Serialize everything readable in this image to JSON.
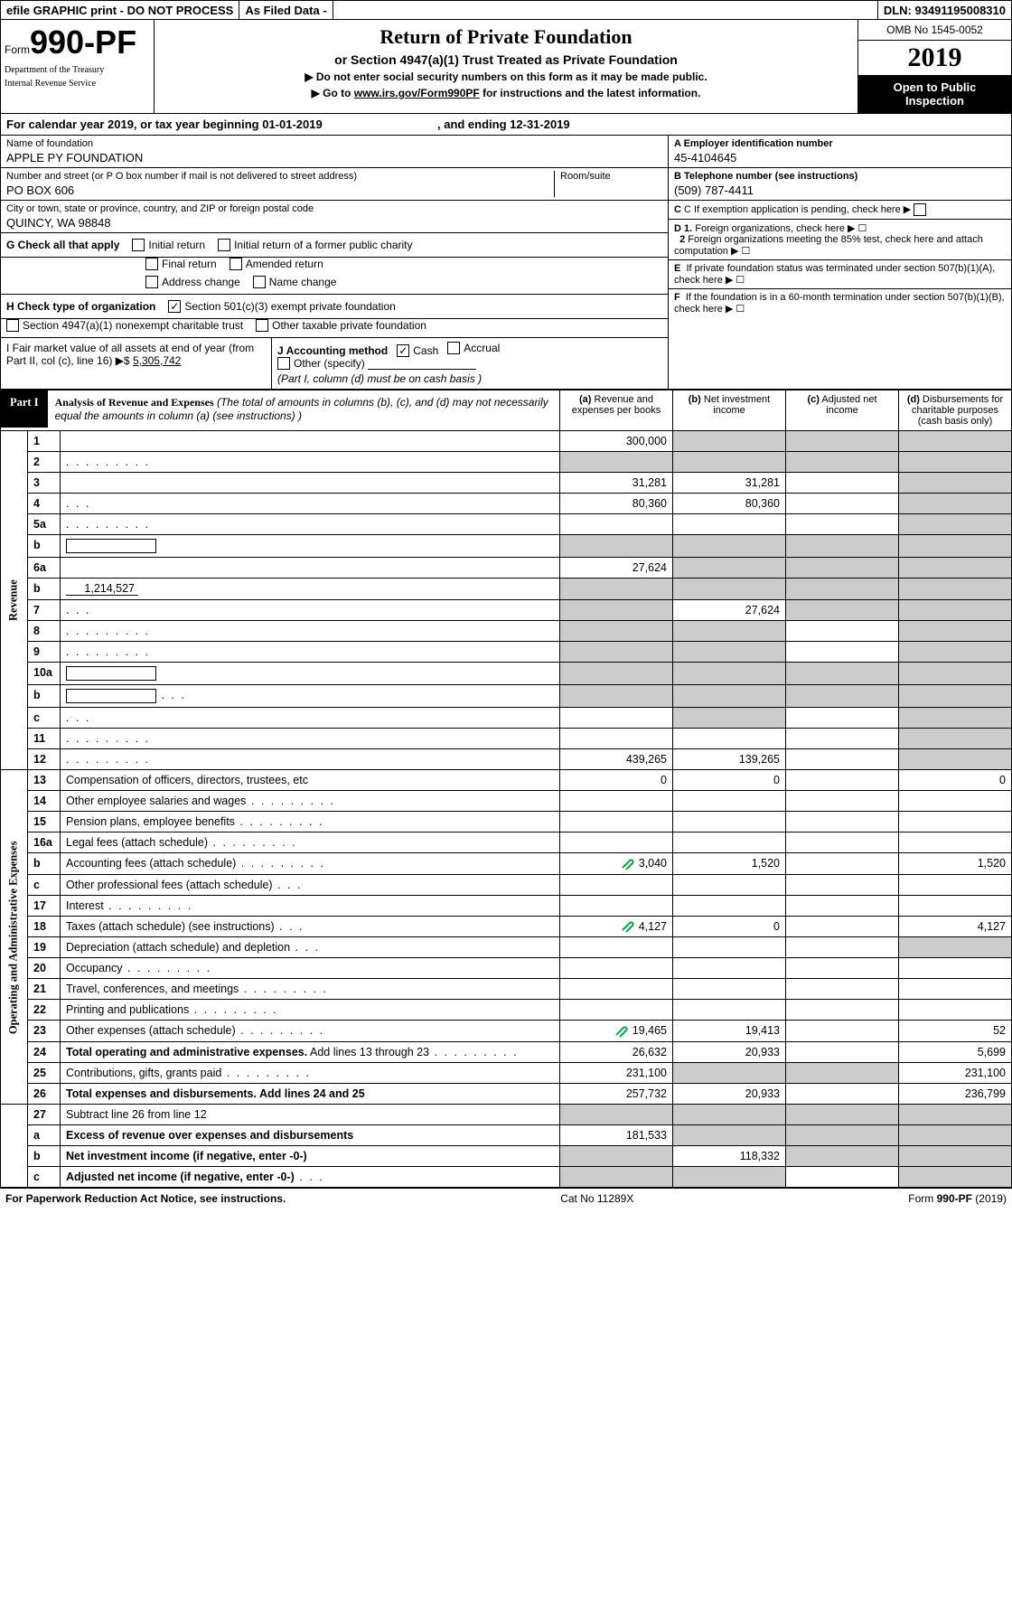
{
  "topbar": {
    "efile": "efile GRAPHIC print - DO NOT PROCESS",
    "asfiled": "As Filed Data -",
    "dln_lbl": "DLN:",
    "dln": "93491195008310"
  },
  "header": {
    "form_prefix": "Form",
    "form_num": "990-PF",
    "dept1": "Department of the Treasury",
    "dept2": "Internal Revenue Service",
    "title": "Return of Private Foundation",
    "subtitle": "or Section 4947(a)(1) Trust Treated as Private Foundation",
    "instr1": "▶ Do not enter social security numbers on this form as it may be made public.",
    "instr2_a": "▶ Go to ",
    "instr2_link": "www.irs.gov/Form990PF",
    "instr2_b": " for instructions and the latest information.",
    "omb": "OMB No 1545-0052",
    "year": "2019",
    "open": "Open to Public Inspection"
  },
  "caly": {
    "a": "For calendar year 2019, or tax year beginning 01-01-2019",
    "b": ", and ending 12-31-2019"
  },
  "info": {
    "name_lbl": "Name of foundation",
    "name": "APPLE PY FOUNDATION",
    "addr_lbl": "Number and street (or P O  box number if mail is not delivered to street address)",
    "addr": "PO BOX 606",
    "room_lbl": "Room/suite",
    "city_lbl": "City or town, state or province, country, and ZIP or foreign postal code",
    "city": "QUINCY, WA  98848",
    "a_lbl": "A Employer identification number",
    "a_val": "45-4104645",
    "b_lbl": "B Telephone number (see instructions)",
    "b_val": "(509) 787-4411",
    "c_lbl": "C If exemption application is pending, check here",
    "d1_lbl": "D 1. Foreign organizations, check here",
    "d2_lbl": "2 Foreign organizations meeting the 85% test, check here and attach computation",
    "e_lbl": "E  If private foundation status was terminated under section 507(b)(1)(A), check here",
    "f_lbl": "F  If the foundation is in a 60-month termination under section 507(b)(1)(B), check here"
  },
  "checks": {
    "g_lbl": "G Check all that apply",
    "g_opts": [
      "Initial return",
      "Initial return of a former public charity",
      "Final return",
      "Amended return",
      "Address change",
      "Name change"
    ],
    "h_lbl": "H Check type of organization",
    "h_opts": [
      "Section 501(c)(3) exempt private foundation",
      "Section 4947(a)(1) nonexempt charitable trust",
      "Other taxable private foundation"
    ],
    "h_checked_idx": 0,
    "i_lbl": "I Fair market value of all assets at end of year (from Part II, col  (c), line 16) ▶$ ",
    "i_val": "5,305,742",
    "j_lbl": "J Accounting method",
    "j_opts": [
      "Cash",
      "Accrual",
      "Other (specify)"
    ],
    "j_checked_idx": 0,
    "j_note": "(Part I, column (d) must be on cash basis )"
  },
  "part1": {
    "lbl": "Part I",
    "title": "Analysis of Revenue and Expenses",
    "note": " (The total of amounts in columns (b), (c), and (d) may not necessarily equal the amounts in column (a) (see instructions) )",
    "col_a": "(a) Revenue and expenses per books",
    "col_b": "(b) Net investment income",
    "col_c": "(c) Adjusted net income",
    "col_d": "(d) Disbursements for charitable purposes (cash basis only)"
  },
  "revenue_lbl": "Revenue",
  "opex_lbl": "Operating and Administrative Expenses",
  "rows": [
    {
      "n": "1",
      "d": "",
      "a": "300,000",
      "b": "",
      "c": "",
      "shade_b": true,
      "shade_c": true,
      "shade_d": true
    },
    {
      "n": "2",
      "d": "",
      "a": "",
      "b": "",
      "c": "",
      "dots": true,
      "shade_all": true
    },
    {
      "n": "3",
      "d": "",
      "a": "31,281",
      "b": "31,281",
      "c": "",
      "shade_d": true
    },
    {
      "n": "4",
      "d": "",
      "a": "80,360",
      "b": "80,360",
      "c": "",
      "shade_d": true,
      "dots_s": true
    },
    {
      "n": "5a",
      "d": "",
      "a": "",
      "b": "",
      "c": "",
      "shade_d": true,
      "dots": true
    },
    {
      "n": "b",
      "d": "",
      "a": "",
      "b": "",
      "c": "",
      "shade_all": true,
      "inline": true
    },
    {
      "n": "6a",
      "d": "",
      "a": "27,624",
      "b": "",
      "c": "",
      "shade_b": true,
      "shade_c": true,
      "shade_d": true
    },
    {
      "n": "b",
      "d": "",
      "a": "",
      "b": "",
      "c": "",
      "shade_all": true,
      "inline_val": "1,214,527"
    },
    {
      "n": "7",
      "d": "",
      "a": "",
      "b": "27,624",
      "c": "",
      "shade_a": true,
      "shade_c": true,
      "shade_d": true,
      "dots_s": true
    },
    {
      "n": "8",
      "d": "",
      "a": "",
      "b": "",
      "c": "",
      "shade_a": true,
      "shade_b": true,
      "shade_d": true,
      "dots": true
    },
    {
      "n": "9",
      "d": "",
      "a": "",
      "b": "",
      "c": "",
      "shade_a": true,
      "shade_b": true,
      "shade_d": true,
      "dots": true
    },
    {
      "n": "10a",
      "d": "",
      "a": "",
      "b": "",
      "c": "",
      "shade_all": true,
      "inline": true
    },
    {
      "n": "b",
      "d": "",
      "a": "",
      "b": "",
      "c": "",
      "shade_all": true,
      "inline": true,
      "dots_s": true
    },
    {
      "n": "c",
      "d": "",
      "a": "",
      "b": "",
      "c": "",
      "shade_b": true,
      "shade_d": true,
      "dots_s": true
    },
    {
      "n": "11",
      "d": "",
      "a": "",
      "b": "",
      "c": "",
      "shade_d": true,
      "dots": true
    },
    {
      "n": "12",
      "d": "",
      "a": "439,265",
      "b": "139,265",
      "c": "",
      "bold": true,
      "shade_d": true,
      "dots": true
    }
  ],
  "exp_rows": [
    {
      "n": "13",
      "d": "0",
      "a": "0",
      "b": "0",
      "c": ""
    },
    {
      "n": "14",
      "d": "",
      "a": "",
      "b": "",
      "c": "",
      "dots": true
    },
    {
      "n": "15",
      "d": "",
      "a": "",
      "b": "",
      "c": "",
      "dots": true
    },
    {
      "n": "16a",
      "d": "",
      "a": "",
      "b": "",
      "c": "",
      "dots": true
    },
    {
      "n": "b",
      "d": "1,520",
      "a": "3,040",
      "b": "1,520",
      "c": "",
      "dots": true,
      "att": true
    },
    {
      "n": "c",
      "d": "",
      "a": "",
      "b": "",
      "c": "",
      "dots_s": true
    },
    {
      "n": "17",
      "d": "",
      "a": "",
      "b": "",
      "c": "",
      "dots": true
    },
    {
      "n": "18",
      "d": "4,127",
      "a": "4,127",
      "b": "0",
      "c": "",
      "dots_s": true,
      "att": true
    },
    {
      "n": "19",
      "d": "",
      "a": "",
      "b": "",
      "c": "",
      "shade_d": true,
      "dots_s": true
    },
    {
      "n": "20",
      "d": "",
      "a": "",
      "b": "",
      "c": "",
      "dots": true
    },
    {
      "n": "21",
      "d": "",
      "a": "",
      "b": "",
      "c": "",
      "dots": true
    },
    {
      "n": "22",
      "d": "",
      "a": "",
      "b": "",
      "c": "",
      "dots": true
    },
    {
      "n": "23",
      "d": "52",
      "a": "19,465",
      "b": "19,413",
      "c": "",
      "dots": true,
      "att": true
    },
    {
      "n": "24",
      "d": "5,699",
      "a": "26,632",
      "b": "20,933",
      "c": "",
      "bold_first": true,
      "dots": true
    },
    {
      "n": "25",
      "d": "231,100",
      "a": "231,100",
      "b": "",
      "c": "",
      "shade_b": true,
      "shade_c": true,
      "dots": true
    },
    {
      "n": "26",
      "d": "236,799",
      "a": "257,732",
      "b": "20,933",
      "c": "",
      "bold": true
    }
  ],
  "bottom_rows": [
    {
      "n": "27",
      "d": "",
      "a": "",
      "b": "",
      "c": "",
      "shade_all": true
    },
    {
      "n": "a",
      "d": "",
      "a": "181,533",
      "b": "",
      "c": "",
      "bold": true,
      "shade_b": true,
      "shade_c": true,
      "shade_d": true
    },
    {
      "n": "b",
      "d": "",
      "a": "",
      "b": "118,332",
      "c": "",
      "bold": true,
      "shade_a": true,
      "shade_c": true,
      "shade_d": true
    },
    {
      "n": "c",
      "d": "",
      "a": "",
      "b": "",
      "c": "",
      "bold": true,
      "shade_a": true,
      "shade_b": true,
      "shade_d": true,
      "dots_s": true
    }
  ],
  "footer": {
    "left": "For Paperwork Reduction Act Notice, see instructions.",
    "mid": "Cat  No  11289X",
    "right": "Form 990-PF (2019)"
  }
}
